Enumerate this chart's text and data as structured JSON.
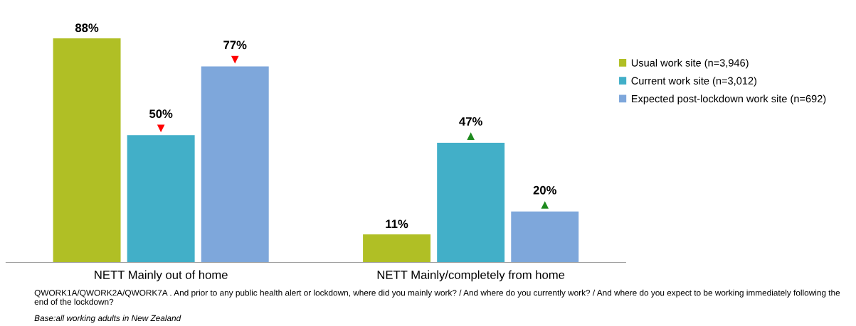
{
  "chart_data": {
    "type": "bar",
    "categories": [
      "NETT Mainly out of home",
      "NETT Mainly/completely from home"
    ],
    "series": [
      {
        "name": "Usual work site (n=3,946)",
        "color": "#b0bf25",
        "values": [
          88,
          11
        ],
        "value_labels": [
          "88%",
          "11%"
        ]
      },
      {
        "name": "Current work site (n=3,012)",
        "color": "#42afc8",
        "values": [
          50,
          47
        ],
        "value_labels": [
          "50%\n▼",
          "47%\n▲"
        ]
      },
      {
        "name": "Expected post-lockdown work site (n=692)",
        "color": "#7ea7db",
        "values": [
          77,
          20
        ],
        "value_labels": [
          "77%\n▼",
          "20%\n▲"
        ]
      }
    ],
    "legend": "right",
    "grid": false,
    "tick_labels": "x",
    "annotations": [
      "QWORK1A/QWORK2A/QWORK7A . And prior to any public health alert or lockdown, where did you mainly work? / And where do you currently work? / And where do you expect to be working immediately following the end of the lockdown?",
      "Base:all working adults in New Zealand"
    ]
  }
}
